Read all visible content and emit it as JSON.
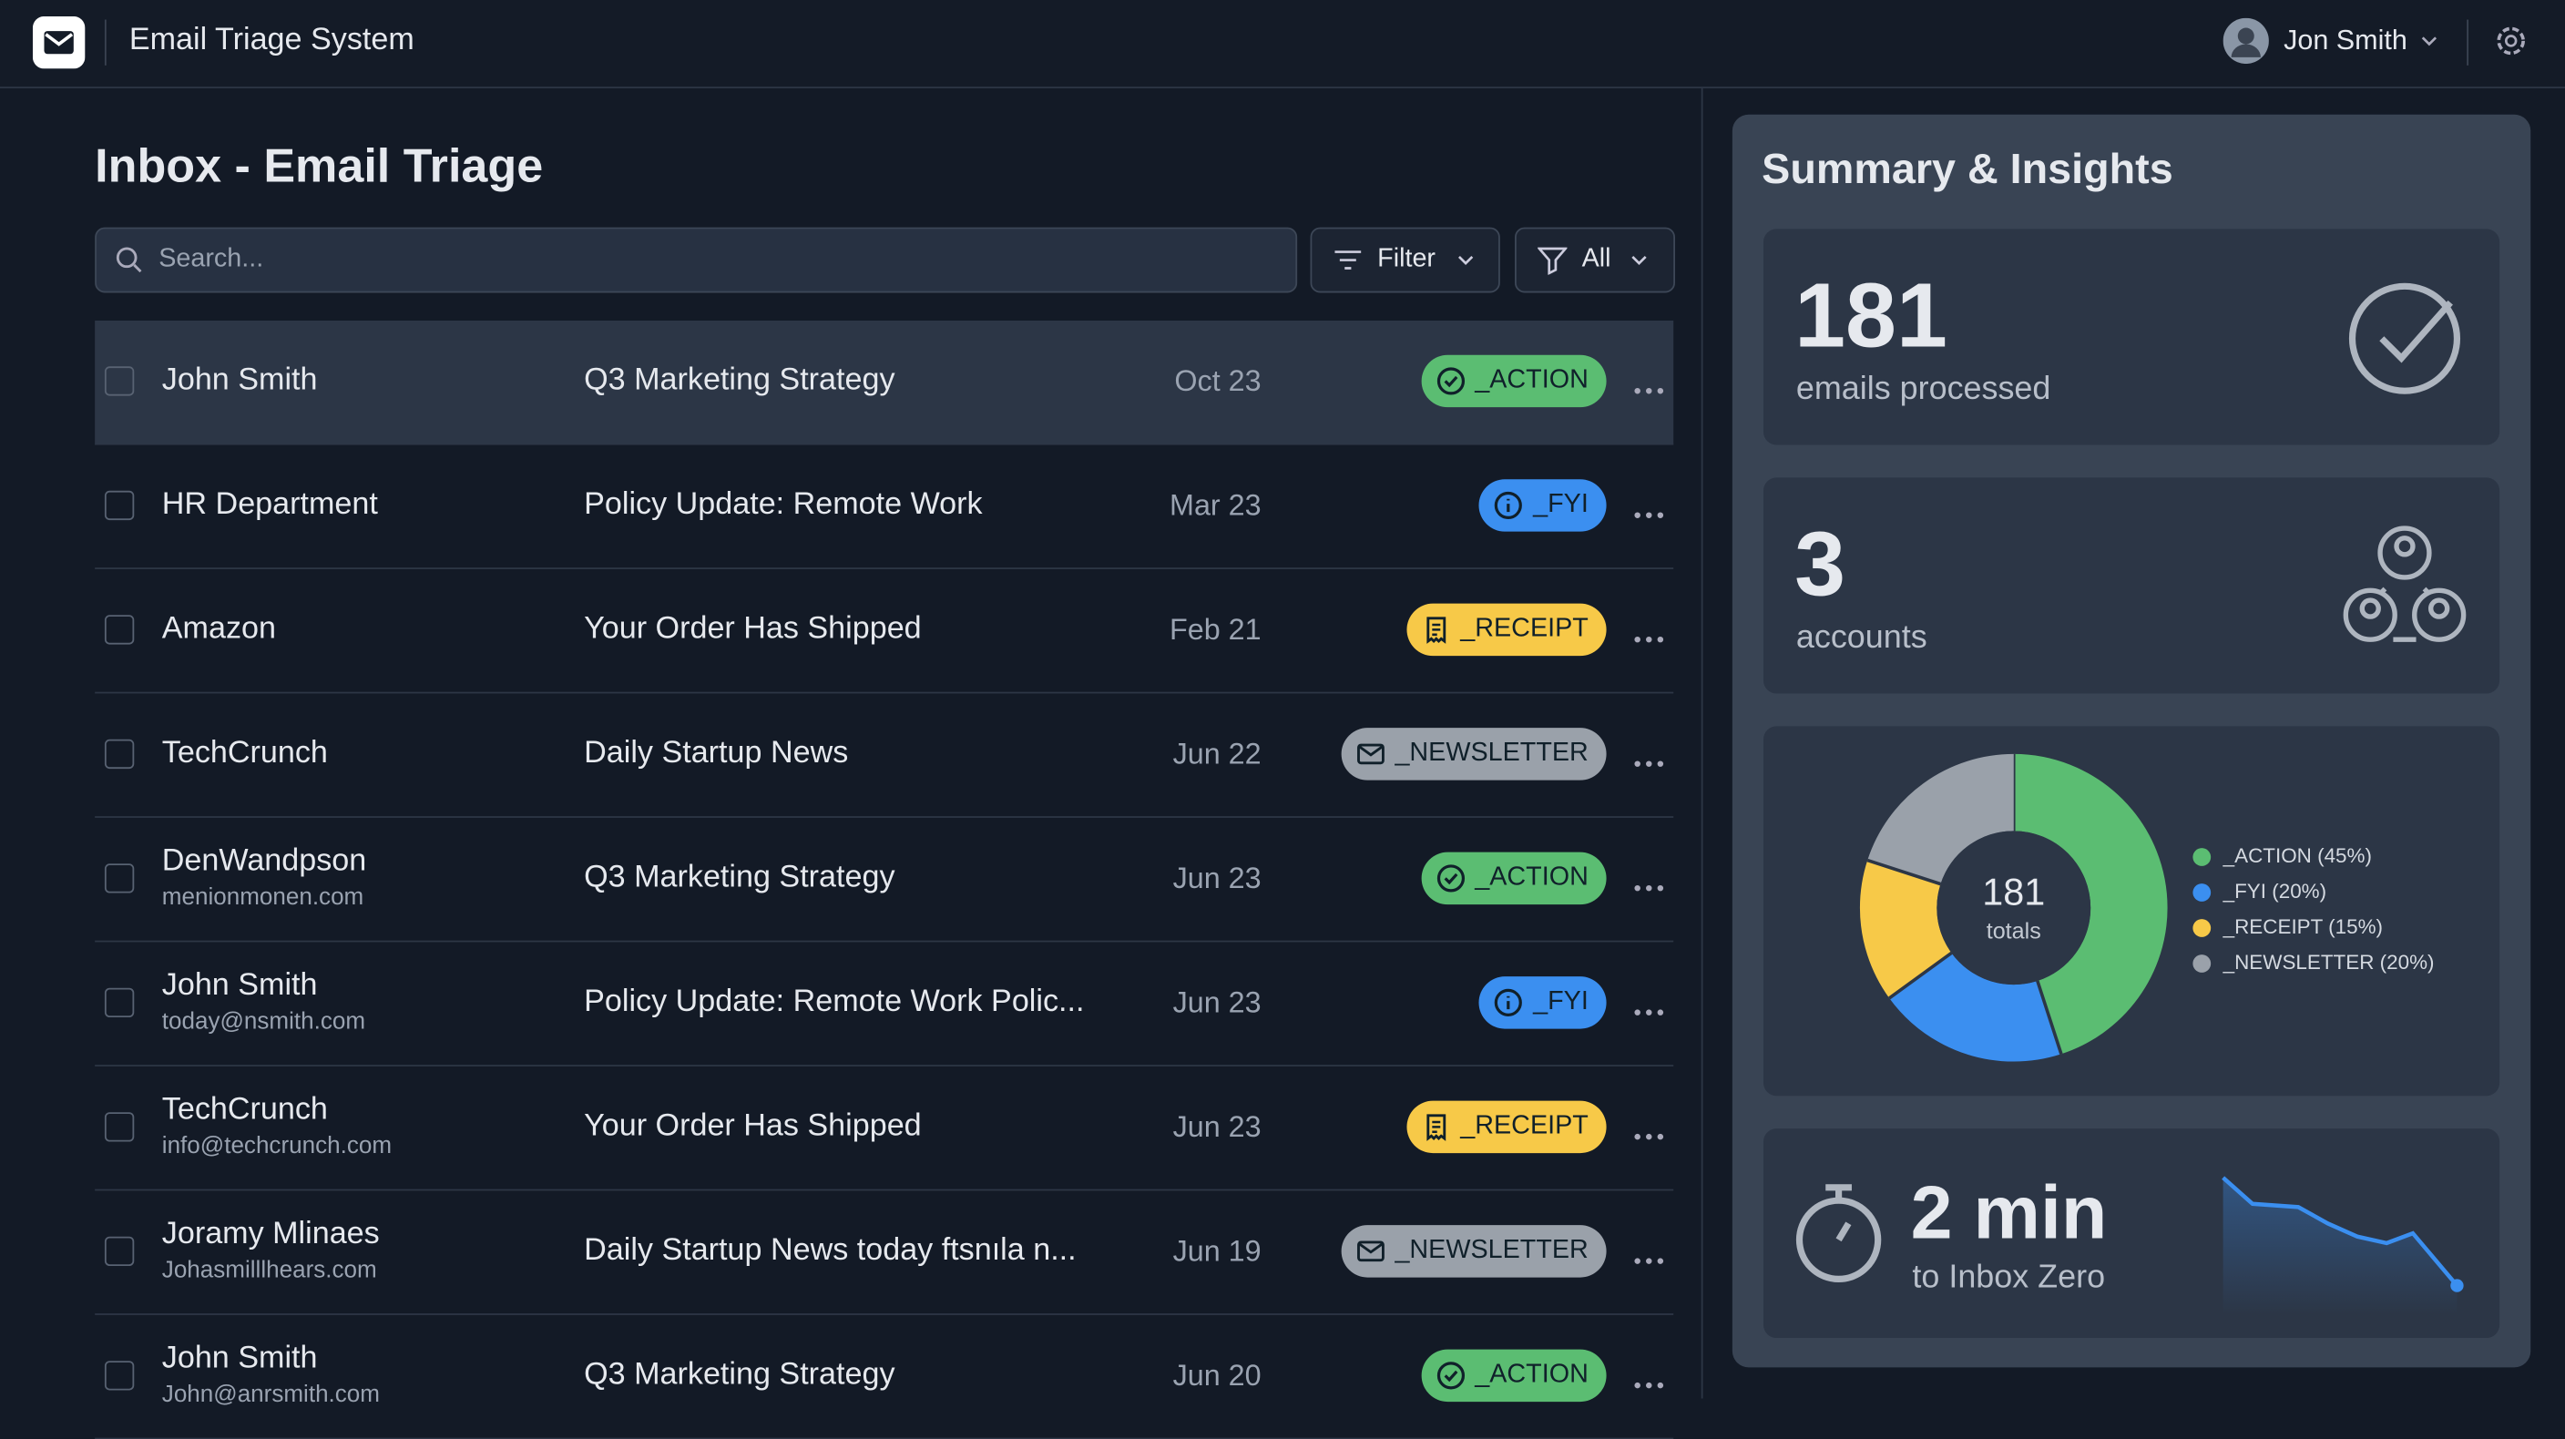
{
  "header": {
    "app_title": "Email Triage System",
    "user_name": "Jon Smith"
  },
  "inbox": {
    "title": "Inbox - Email Triage",
    "search_placeholder": "Search...",
    "filter_button": "Filter",
    "all_button": "All",
    "rows": [
      {
        "sender": "John Smith",
        "subject": "Q3 Marketing Strategy",
        "date": "Oct 23",
        "tag": "_ACTION",
        "tag_color": "#5bbd72",
        "icon": "check"
      },
      {
        "sender": "HR Department",
        "subject": "Policy Update: Remote Work",
        "date": "Mar 23",
        "tag": "_FYI",
        "tag_color": "#3b8ff0",
        "icon": "info"
      },
      {
        "sender": "Amazon",
        "subject": "Your Order Has Shipped",
        "date": "Feb 21",
        "tag": "_RECEIPT",
        "tag_color": "#f7c948",
        "icon": "receipt"
      },
      {
        "sender": "TechCrunch",
        "subject": "Daily Startup News",
        "date": "Jun 22",
        "tag": "_NEWSLETTER",
        "tag_color": "#9aa1aa",
        "icon": "mail"
      },
      {
        "sender": "DenWandpson",
        "email": "menionmonen.com",
        "subject": "Q3 Marketing Strategy",
        "date": "Jun 23",
        "tag": "_ACTION",
        "tag_color": "#5bbd72",
        "icon": "check"
      },
      {
        "sender": "John Smith",
        "email": "today@nsmith.com",
        "subject": "Policy Update: Remote Work Polic...",
        "date": "Jun 23",
        "tag": "_FYI",
        "tag_color": "#3b8ff0",
        "icon": "info"
      },
      {
        "sender": "TechCrunch",
        "email": "info@techcrunch.com",
        "subject": "Your Order Has Shipped",
        "date": "Jun 23",
        "tag": "_RECEIPT",
        "tag_color": "#f7c948",
        "icon": "receipt"
      },
      {
        "sender": "Joramy Mlinaes",
        "email": "Johasmilllhears.com",
        "subject": "Daily Startup News today ftsnıla n...",
        "date": "Jun 19",
        "tag": "_NEWSLETTER",
        "tag_color": "#9aa1aa",
        "icon": "mail"
      },
      {
        "sender": "John Smith",
        "email": "John@anrsmith.com",
        "subject": "Q3 Marketing Strategy",
        "date": "Jun 20",
        "tag": "_ACTION",
        "tag_color": "#5bbd72",
        "icon": "check"
      }
    ]
  },
  "summary": {
    "title": "Summary & Insights",
    "processed": {
      "value": "181",
      "label": "emails processed"
    },
    "accounts": {
      "value": "3",
      "label": "accounts"
    },
    "donut": {
      "center_value": "181",
      "center_label": "totals",
      "segments": [
        {
          "label": "_ACTION (45%)",
          "value": 45,
          "color": "#5bbd72"
        },
        {
          "label": "_FYI (20%)",
          "value": 20,
          "color": "#3b8ff0"
        },
        {
          "label": "_RECEIPT (15%)",
          "value": 15,
          "color": "#f7c948"
        },
        {
          "label": "_NEWSLETTER (20%)",
          "value": 20,
          "color": "#9aa1aa"
        }
      ]
    },
    "inbox_zero": {
      "value": "2 min",
      "label": "to Inbox Zero"
    }
  }
}
